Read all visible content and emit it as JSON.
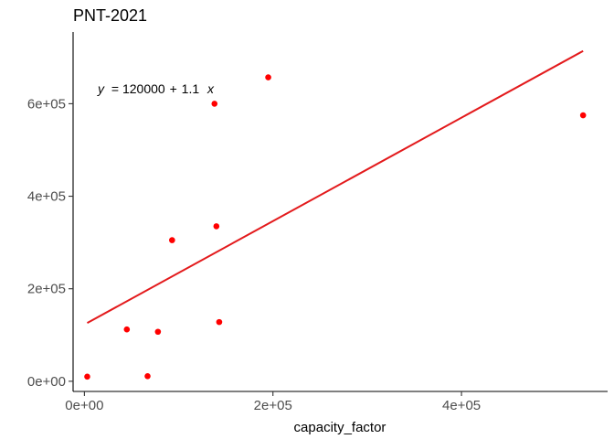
{
  "chart_data": {
    "type": "scatter",
    "title": "PNT-2021",
    "xlabel": "capacity_factor",
    "ylabel": "",
    "xlim": [
      -12000,
      555000
    ],
    "ylim": [
      -22000,
      755000
    ],
    "x_ticks": [
      0,
      200000,
      400000
    ],
    "x_tick_labels": [
      "0e+00",
      "2e+05",
      "4e+05"
    ],
    "y_ticks": [
      0,
      200000,
      400000,
      600000
    ],
    "y_tick_labels": [
      "0e+00",
      "2e+05",
      "4e+05",
      "6e+05"
    ],
    "grid": false,
    "annotation": {
      "y_var": "y",
      "eq": "= 120000",
      "op": "+",
      "coef": "1.1",
      "x_var": "x"
    },
    "series": [
      {
        "points": [
          {
            "x": 3000,
            "y": 10000
          },
          {
            "x": 45000,
            "y": 112000
          },
          {
            "x": 67000,
            "y": 11000
          },
          {
            "x": 78000,
            "y": 107000
          },
          {
            "x": 93000,
            "y": 305000
          },
          {
            "x": 138000,
            "y": 600000
          },
          {
            "x": 140000,
            "y": 335000
          },
          {
            "x": 143000,
            "y": 128000
          },
          {
            "x": 195000,
            "y": 657000
          },
          {
            "x": 529000,
            "y": 575000
          }
        ],
        "color": "#ff0000"
      }
    ],
    "fit_line": {
      "x": [
        3000,
        529000
      ],
      "y": [
        126000,
        714000
      ],
      "color": "#e31a1c"
    }
  }
}
